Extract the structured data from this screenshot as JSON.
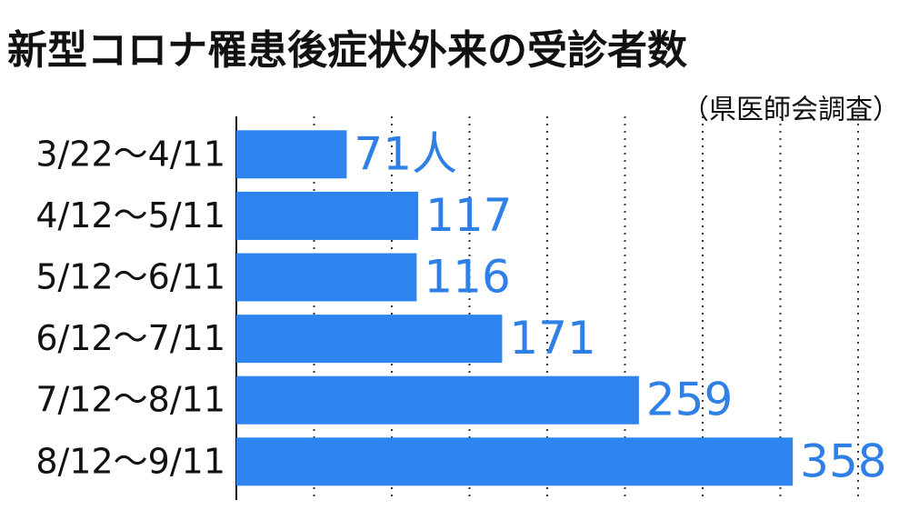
{
  "chart_data": {
    "type": "bar",
    "orientation": "horizontal",
    "title": "新型コロナ罹患後症状外来の受診者数",
    "subtitle": "（県医師会調査）",
    "categories": [
      "3/22〜4/11",
      "4/12〜5/11",
      "5/12〜6/11",
      "6/12〜7/11",
      "7/12〜8/11",
      "8/12〜9/11"
    ],
    "values": [
      71,
      117,
      116,
      171,
      259,
      358
    ],
    "value_labels": [
      "71人",
      "117",
      "116",
      "171",
      "259",
      "358"
    ],
    "color": "#2e84ef",
    "label_color": "#2e7fe6",
    "xlim": [
      0,
      400
    ],
    "xticks": [
      0,
      50,
      100,
      150,
      200,
      250,
      300,
      350,
      400
    ],
    "grid": true
  }
}
